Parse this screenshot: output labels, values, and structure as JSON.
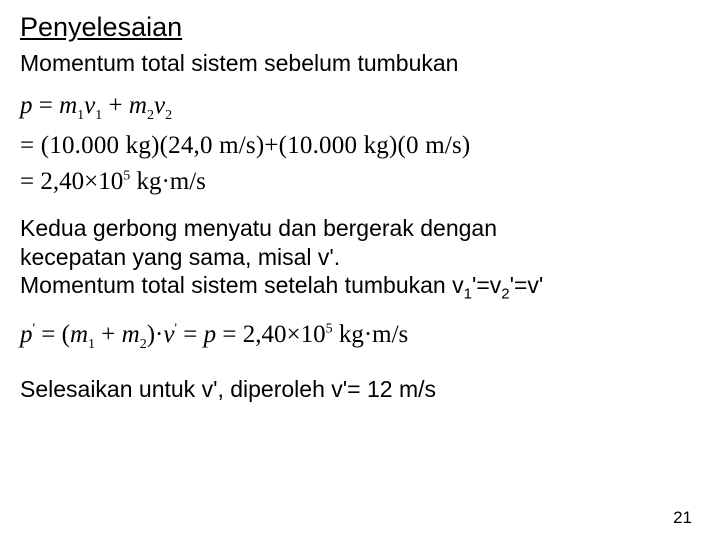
{
  "title": "Penyelesaian",
  "line1": "Momentum total sistem sebelum tumbukan",
  "mid": {
    "l1": "Kedua gerbong menyatu dan bergerak dengan",
    "l2": "kecepatan yang sama, misal v'.",
    "l3a": "Momentum total sistem setelah tumbukan v",
    "l3b": "'=v",
    "l3c": "'=v'",
    "sub1": "1",
    "sub2": "2"
  },
  "final": "Selesaikan untuk v', diperoleh v'= 12 m/s",
  "eq1": {
    "p": "p",
    "eq": " = ",
    "m": "m",
    "v": "v",
    "plus": " + ",
    "s1": "1",
    "s2": "2",
    "line2": "= (10.000 kg)(24,0 m/s)+(10.000 kg)(0 m/s)",
    "line3a": "= 2,40",
    "times": "×",
    "ten": "10",
    "exp5": "5",
    "units": " kg·m/s"
  },
  "eq2": {
    "p": "p",
    "prime": "'",
    "eq": " = ",
    "lpar": "(",
    "m": "m",
    "s1": "1",
    "plus": " + ",
    "s2": "2",
    "rpar": ")",
    "dot": "·",
    "v": "v",
    "eq2": " = ",
    "pr": "p",
    "eq3": " = ",
    "val": "2,40",
    "times": "×",
    "ten": "10",
    "exp5": "5",
    "units": " kg·m/s"
  },
  "page": "21"
}
